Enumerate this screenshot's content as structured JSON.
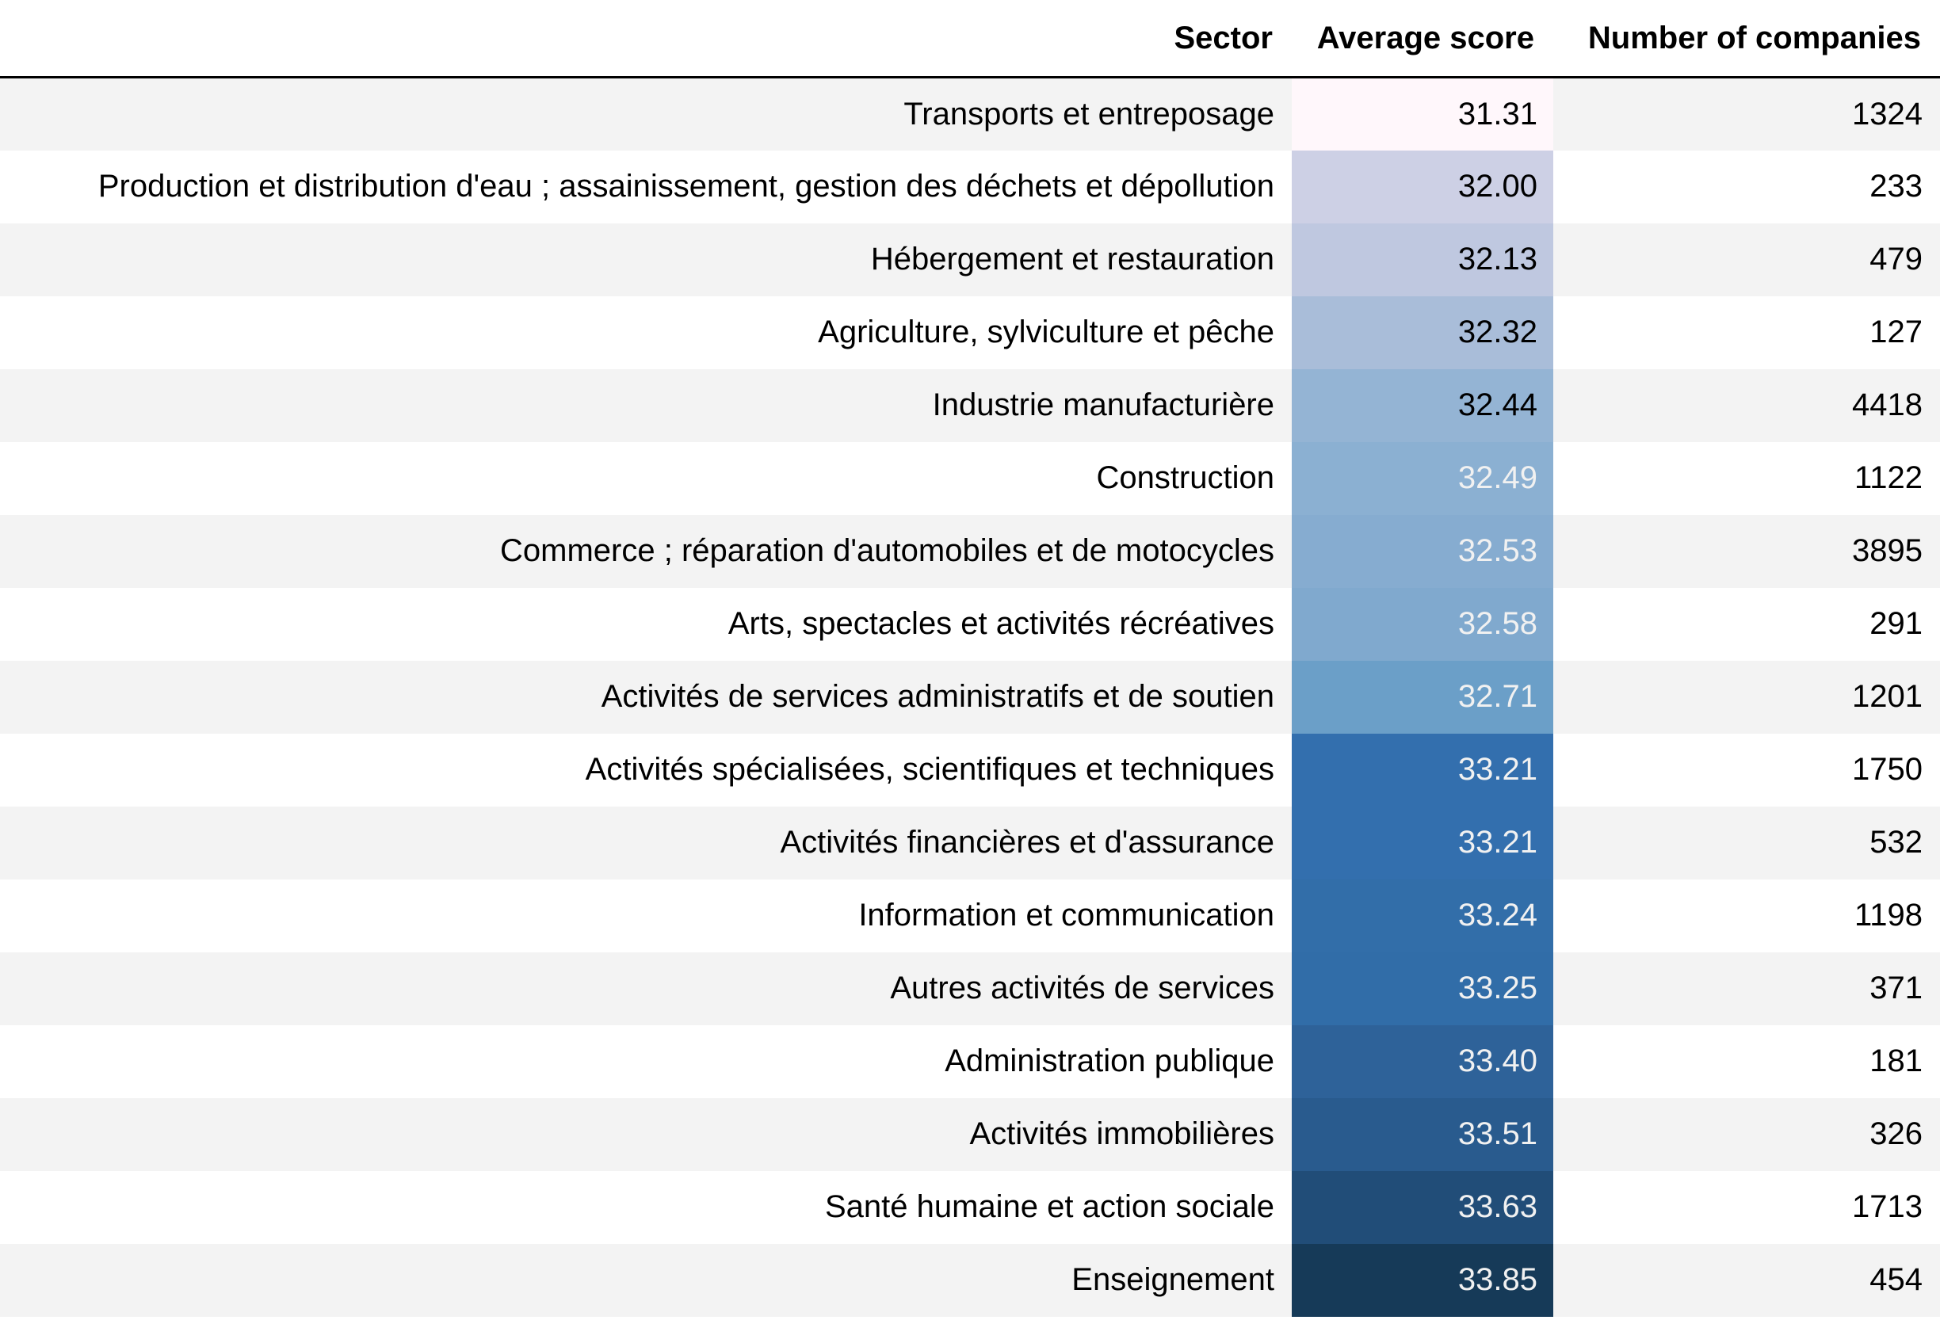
{
  "chart_data": {
    "type": "table",
    "columns": [
      "Sector",
      "Average score",
      "Number of companies"
    ],
    "rows": [
      {
        "sector": "Transports et entreposage",
        "score": "31.31",
        "count": "1324",
        "bg": "#fff7fb",
        "fg": "#000000"
      },
      {
        "sector": "Production et distribution d'eau ; assainissement, gestion des déchets et dépollution",
        "score": "32.00",
        "count": "233",
        "bg": "#cdd0e5",
        "fg": "#000000"
      },
      {
        "sector": "Hébergement et restauration",
        "score": "32.13",
        "count": "479",
        "bg": "#bfc8e0",
        "fg": "#000000"
      },
      {
        "sector": "Agriculture, sylviculture et pêche",
        "score": "32.32",
        "count": "127",
        "bg": "#a9bdd9",
        "fg": "#000000"
      },
      {
        "sector": "Industrie manufacturière",
        "score": "32.44",
        "count": "4418",
        "bg": "#94b4d4",
        "fg": "#000000"
      },
      {
        "sector": "Construction",
        "score": "32.49",
        "count": "1122",
        "bg": "#8bb0d2",
        "fg": "#f1f1f1"
      },
      {
        "sector": "Commerce ; réparation d'automobiles et de motocycles",
        "score": "32.53",
        "count": "3895",
        "bg": "#86acd0",
        "fg": "#f1f1f1"
      },
      {
        "sector": "Arts, spectacles et activités récréatives",
        "score": "32.58",
        "count": "291",
        "bg": "#80a9ce",
        "fg": "#f1f1f1"
      },
      {
        "sector": "Activités de services administratifs et de soutien",
        "score": "32.71",
        "count": "1201",
        "bg": "#6b9fc8",
        "fg": "#f1f1f1"
      },
      {
        "sector": "Activités spécialisées, scientifiques et techniques",
        "score": "33.21",
        "count": "1750",
        "bg": "#336fae",
        "fg": "#f1f1f1"
      },
      {
        "sector": "Activités financières et d'assurance",
        "score": "33.21",
        "count": "532",
        "bg": "#336fae",
        "fg": "#f1f1f1"
      },
      {
        "sector": "Information et communication",
        "score": "33.24",
        "count": "1198",
        "bg": "#326ea9",
        "fg": "#f1f1f1"
      },
      {
        "sector": "Autres activités de services",
        "score": "33.25",
        "count": "371",
        "bg": "#316da8",
        "fg": "#f1f1f1"
      },
      {
        "sector": "Administration publique",
        "score": "33.40",
        "count": "181",
        "bg": "#2e6299",
        "fg": "#f1f1f1"
      },
      {
        "sector": "Activités immobilières",
        "score": "33.51",
        "count": "326",
        "bg": "#295b8e",
        "fg": "#f1f1f1"
      },
      {
        "sector": "Santé humaine et action sociale",
        "score": "33.63",
        "count": "1713",
        "bg": "#214d78",
        "fg": "#f1f1f1"
      },
      {
        "sector": "Enseignement",
        "score": "33.85",
        "count": "454",
        "bg": "#163a58",
        "fg": "#f1f1f1"
      }
    ],
    "color_scale": {
      "column": "Average score",
      "min_color": "#fff7fb",
      "max_color": "#163a58"
    }
  }
}
